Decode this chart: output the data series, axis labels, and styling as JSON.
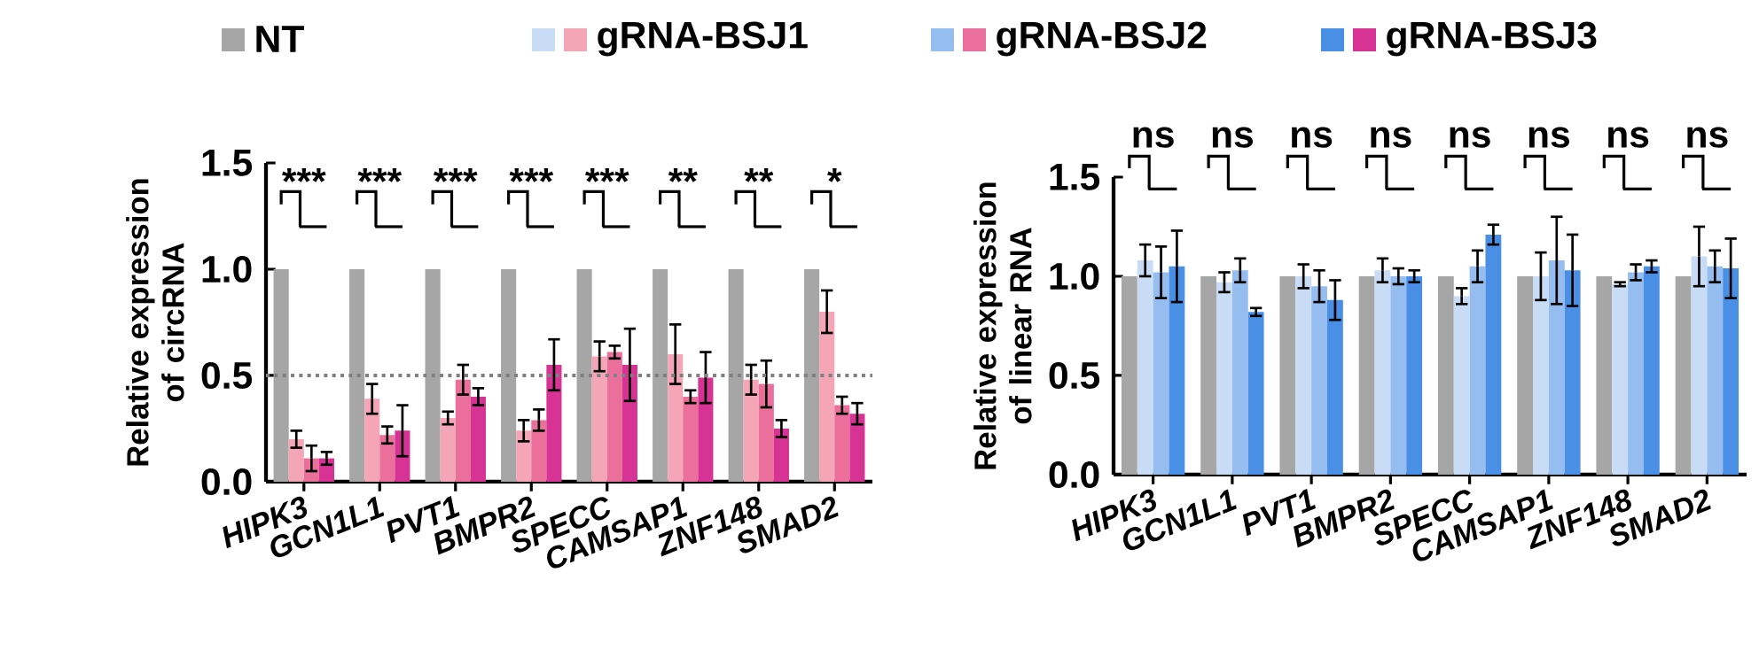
{
  "chart_data": [
    {
      "type": "bar",
      "ylabel": "Relative expression of circRNA",
      "categories": [
        "HIPK3",
        "GCN1L1",
        "PVT1",
        "BMPR2",
        "SPECC",
        "CAMSAP1",
        "ZNF148",
        "SMAD2"
      ],
      "ylim": [
        0,
        1.5
      ],
      "yticks": [
        {
          "value": 0,
          "label": "0.0"
        },
        {
          "value": 0.5,
          "label": "0.5"
        },
        {
          "value": 1,
          "label": "1.0"
        },
        {
          "value": 1.5,
          "label": "1.5"
        }
      ],
      "legend": "top",
      "series": [
        {
          "name": "NT",
          "color": "#a6a6a6",
          "values": [
            1,
            1,
            1,
            1,
            1,
            1,
            1,
            1
          ]
        },
        {
          "name": "gRNA-BSJ1",
          "color": "#f4a6b6",
          "values": [
            0.2,
            0.39,
            0.3,
            0.24,
            0.59,
            0.6,
            0.48,
            0.8
          ],
          "errors": [
            0.04,
            0.07,
            0.03,
            0.05,
            0.07,
            0.14,
            0.07,
            0.1
          ]
        },
        {
          "name": "gRNA-BSJ2",
          "color": "#ea6f9a",
          "values": [
            0.11,
            0.22,
            0.48,
            0.29,
            0.61,
            0.4,
            0.46,
            0.36
          ],
          "errors": [
            0.06,
            0.04,
            0.07,
            0.05,
            0.03,
            0.03,
            0.11,
            0.04
          ]
        },
        {
          "name": "gRNA-BSJ3",
          "color": "#d63394",
          "values": [
            0.11,
            0.24,
            0.4,
            0.55,
            0.55,
            0.49,
            0.25,
            0.32
          ],
          "errors": [
            0.03,
            0.12,
            0.04,
            0.12,
            0.17,
            0.12,
            0.04,
            0.05
          ]
        }
      ],
      "ref_lines": [
        {
          "axis": "y",
          "value": 0.5,
          "color": "#808080",
          "line_style": "dotted"
        }
      ],
      "annotations": [
        "***",
        "***",
        "***",
        "***",
        "***",
        "**",
        "**",
        "*"
      ]
    },
    {
      "type": "bar",
      "ylabel": "Relative expression of linear RNA",
      "categories": [
        "HIPK3",
        "GCN1L1",
        "PVT1",
        "BMPR2",
        "SPECC",
        "CAMSAP1",
        "ZNF148",
        "SMAD2"
      ],
      "ylim": [
        0,
        1.5
      ],
      "yticks": [
        {
          "value": 0,
          "label": "0.0"
        },
        {
          "value": 0.5,
          "label": "0.5"
        },
        {
          "value": 1,
          "label": "1.0"
        },
        {
          "value": 1.5,
          "label": "1.5"
        }
      ],
      "series": [
        {
          "color": "#a6a6a6",
          "values": [
            1,
            1,
            1,
            1,
            1,
            1,
            1,
            1
          ]
        },
        {
          "color": "#c8dcf5",
          "values": [
            1.08,
            0.97,
            1.0,
            1.03,
            0.9,
            1.0,
            0.96,
            1.1
          ],
          "errors": [
            0.08,
            0.05,
            0.06,
            0.06,
            0.04,
            0.12,
            0.01,
            0.15
          ]
        },
        {
          "color": "#96bdf0",
          "values": [
            1.02,
            1.03,
            0.95,
            1.0,
            1.05,
            1.08,
            1.02,
            1.05
          ],
          "errors": [
            0.13,
            0.06,
            0.08,
            0.04,
            0.08,
            0.22,
            0.04,
            0.08
          ]
        },
        {
          "color": "#4a8fe6",
          "values": [
            1.05,
            0.82,
            0.88,
            1.0,
            1.21,
            1.03,
            1.05,
            1.04
          ],
          "errors": [
            0.18,
            0.02,
            0.1,
            0.03,
            0.05,
            0.18,
            0.03,
            0.15
          ]
        }
      ],
      "annotations": [
        "ns",
        "ns",
        "ns",
        "ns",
        "ns",
        "ns",
        "ns",
        "ns"
      ]
    }
  ]
}
